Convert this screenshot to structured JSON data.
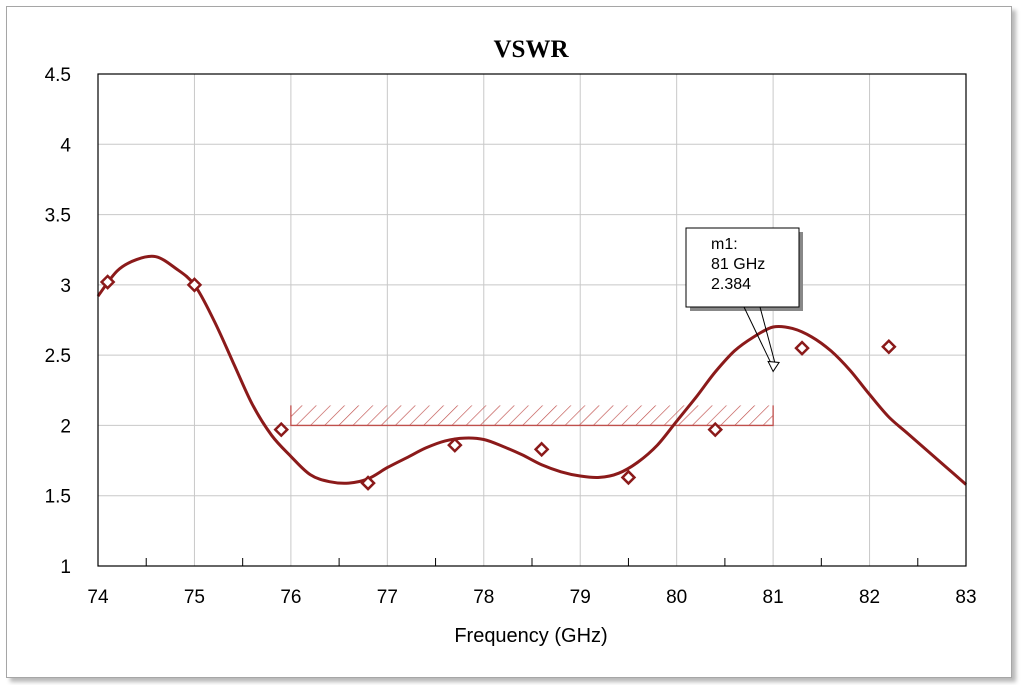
{
  "chart_data": {
    "type": "line",
    "title": "VSWR",
    "xlabel": "Frequency (GHz)",
    "ylabel": "",
    "xlim": [
      74,
      83
    ],
    "ylim": [
      1,
      4.5
    ],
    "x_ticks": [
      "74",
      "75",
      "76",
      "77",
      "78",
      "79",
      "80",
      "81",
      "82",
      "83"
    ],
    "y_ticks": [
      "1",
      "1.5",
      "2",
      "2.5",
      "3",
      "3.5",
      "4",
      "4.5"
    ],
    "grid": true,
    "series_color": "#8b1a1a",
    "series": [
      {
        "x": [
          74.0,
          74.2,
          74.4,
          74.6,
          74.8,
          75.0,
          75.2,
          75.4,
          75.6,
          75.8,
          76.0,
          76.2,
          76.4,
          76.6,
          76.8,
          77.0,
          77.2,
          77.4,
          77.6,
          77.8,
          78.0,
          78.2,
          78.4,
          78.6,
          78.8,
          79.0,
          79.2,
          79.4,
          79.6,
          79.8,
          80.0,
          80.2,
          80.4,
          80.6,
          80.8,
          81.0,
          81.2,
          81.4,
          81.6,
          81.8,
          82.0,
          82.2,
          82.4,
          82.6,
          82.8,
          83.0
        ],
        "y": [
          2.92,
          3.1,
          3.18,
          3.2,
          3.12,
          3.0,
          2.75,
          2.45,
          2.15,
          1.93,
          1.78,
          1.65,
          1.6,
          1.59,
          1.62,
          1.7,
          1.77,
          1.84,
          1.89,
          1.91,
          1.9,
          1.85,
          1.79,
          1.72,
          1.67,
          1.64,
          1.63,
          1.66,
          1.74,
          1.86,
          2.03,
          2.2,
          2.38,
          2.53,
          2.63,
          2.7,
          2.69,
          2.63,
          2.53,
          2.39,
          2.22,
          2.06,
          1.94,
          1.82,
          1.7,
          1.58
        ]
      }
    ],
    "symbols": {
      "x": [
        74.1,
        75.0,
        75.9,
        76.8,
        77.7,
        78.6,
        79.5,
        80.4,
        81.3,
        82.2
      ],
      "y": [
        3.02,
        3.0,
        1.97,
        1.59,
        1.86,
        1.83,
        1.63,
        1.97,
        2.55,
        2.56
      ]
    },
    "spec_mask": {
      "x_start": 76,
      "x_end": 81,
      "y_value": 2.0,
      "color": "#c0504d"
    },
    "marker": {
      "x": 81,
      "y": 2.384,
      "lines": [
        "m1:",
        "81 GHz",
        "2.384"
      ]
    }
  }
}
